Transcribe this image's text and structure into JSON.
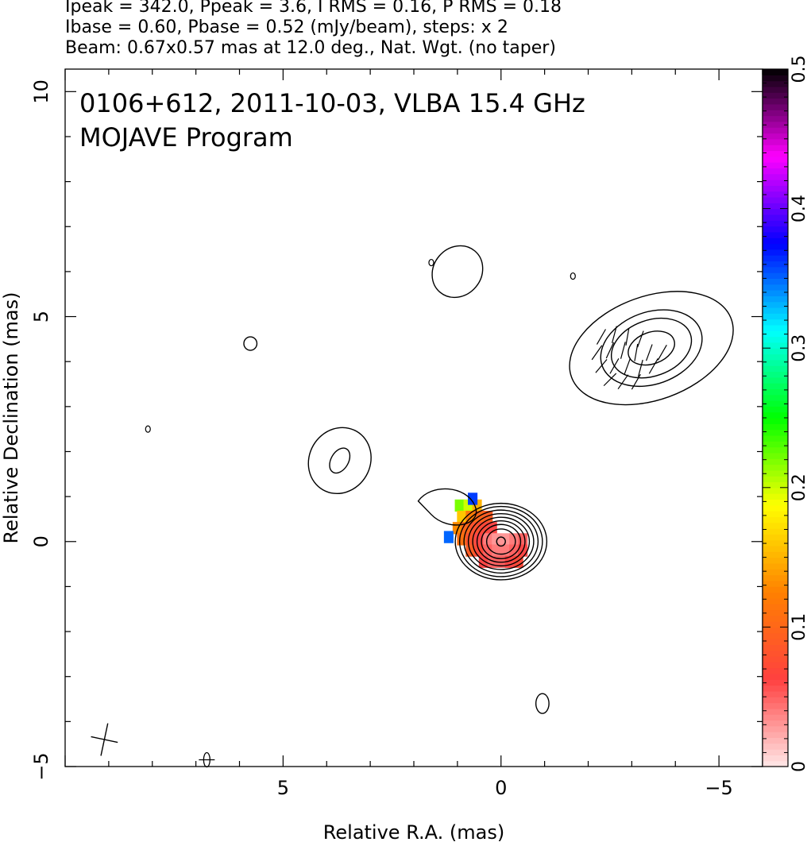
{
  "header": {
    "line1": "Ipeak = 342.0, Ppeak = 3.6, I RMS = 0.16, P RMS = 0.18",
    "line2": "Ibase = 0.60, Pbase = 0.52 (mJy/beam), steps: x 2",
    "line3": "Beam: 0.67x0.57 mas at 12.0 deg., Nat. Wgt. (no taper)"
  },
  "chart_data": {
    "type": "heatmap",
    "title": "0106+612, 2011-10-03, VLBA 15.4 GHz",
    "subtitle": "MOJAVE Program",
    "xlabel": "Relative R.A. (mas)",
    "ylabel": "Relative Declination (mas)",
    "xlim": [
      10.0,
      -6.0
    ],
    "ylim": [
      -5.0,
      10.5
    ],
    "x_ticks": [
      {
        "value": 5,
        "label": "5"
      },
      {
        "value": 0,
        "label": "0"
      },
      {
        "value": -5,
        "label": "−5"
      }
    ],
    "y_ticks": [
      {
        "value": 10,
        "label": "10"
      },
      {
        "value": 5,
        "label": "5"
      },
      {
        "value": 0,
        "label": "0"
      },
      {
        "value": -5,
        "label": "−5"
      }
    ],
    "colorbar": {
      "range": [
        0,
        0.5
      ],
      "ticks": [
        {
          "value": 0,
          "label": "0"
        },
        {
          "value": 0.1,
          "label": "0.1"
        },
        {
          "value": 0.2,
          "label": "0.2"
        },
        {
          "value": 0.3,
          "label": "0.3"
        },
        {
          "value": 0.4,
          "label": "0.4"
        },
        {
          "value": 0.5,
          "label": "0.5"
        }
      ],
      "colors": [
        "#ffe8e8",
        "#ff4040",
        "#ff8000",
        "#ffff00",
        "#00ff00",
        "#00ffff",
        "#0000ff",
        "#ff00ff",
        "#000000"
      ]
    },
    "beam": {
      "major_mas": 0.67,
      "minor_mas": 0.57,
      "pa_deg": 12.0
    },
    "contours": {
      "core": {
        "center": [
          0.0,
          0.0
        ],
        "base_radii_mas": [
          [
            1.05,
            0.85
          ],
          [
            0.95,
            0.78
          ],
          [
            0.85,
            0.7
          ],
          [
            0.75,
            0.62
          ],
          [
            0.65,
            0.54
          ],
          [
            0.55,
            0.46
          ],
          [
            0.45,
            0.38
          ],
          [
            0.33,
            0.28
          ],
          [
            0.1,
            0.1
          ]
        ]
      },
      "core_extension": [
        [
          1.9,
          0.9
        ],
        [
          1.6,
          1.3
        ],
        [
          0.8,
          1.25
        ],
        [
          0.6,
          0.8
        ],
        [
          1.2,
          0.2
        ],
        [
          1.6,
          0.6
        ]
      ],
      "components": [
        {
          "name": "upper-right",
          "center": [
            -3.45,
            4.3
          ],
          "radii_mas": [
            [
              1.95,
              1.15
            ],
            [
              1.2,
              0.8
            ],
            [
              0.95,
              0.62
            ],
            [
              0.55,
              0.35
            ]
          ],
          "rotation_deg": -20
        },
        {
          "name": "mid-left",
          "center": [
            3.7,
            1.8
          ],
          "radii_mas": [
            [
              0.7,
              0.75
            ],
            [
              0.2,
              0.3
            ]
          ],
          "rotation_deg": 30
        },
        {
          "name": "top-middle",
          "center": [
            1.0,
            6.0
          ],
          "radii_mas": [
            [
              0.55,
              0.6
            ]
          ],
          "rotation_deg": 40
        },
        {
          "name": "bottom",
          "center": [
            -0.95,
            -3.6
          ],
          "radii_mas": [
            [
              0.15,
              0.22
            ]
          ],
          "rotation_deg": 0
        },
        {
          "name": "small-left",
          "center": [
            5.75,
            4.4
          ],
          "radii_mas": [
            [
              0.15,
              0.15
            ]
          ],
          "rotation_deg": 0
        }
      ],
      "specks": [
        [
          1.6,
          6.2
        ],
        [
          8.1,
          2.5
        ],
        [
          -1.65,
          5.9
        ]
      ]
    },
    "polarization_cells": [
      {
        "x": 0.95,
        "y": 0.8,
        "v": 0.22
      },
      {
        "x": 0.75,
        "y": 0.8,
        "v": 0.2
      },
      {
        "x": 0.55,
        "y": 0.8,
        "v": 0.15
      },
      {
        "x": 0.9,
        "y": 0.55,
        "v": 0.16
      },
      {
        "x": 0.7,
        "y": 0.55,
        "v": 0.12
      },
      {
        "x": 0.5,
        "y": 0.55,
        "v": 0.1
      },
      {
        "x": 0.3,
        "y": 0.55,
        "v": 0.09
      },
      {
        "x": 1.0,
        "y": 0.3,
        "v": 0.13
      },
      {
        "x": 0.8,
        "y": 0.3,
        "v": 0.1
      },
      {
        "x": 0.6,
        "y": 0.3,
        "v": 0.08
      },
      {
        "x": 0.4,
        "y": 0.3,
        "v": 0.07
      },
      {
        "x": 0.2,
        "y": 0.3,
        "v": 0.06
      },
      {
        "x": 0.9,
        "y": 0.05,
        "v": 0.11
      },
      {
        "x": 0.7,
        "y": 0.05,
        "v": 0.08
      },
      {
        "x": 0.5,
        "y": 0.05,
        "v": 0.06
      },
      {
        "x": 0.3,
        "y": 0.05,
        "v": 0.04
      },
      {
        "x": 0.1,
        "y": 0.05,
        "v": 0.03
      },
      {
        "x": -0.1,
        "y": 0.05,
        "v": 0.03
      },
      {
        "x": -0.3,
        "y": 0.05,
        "v": 0.04
      },
      {
        "x": -0.5,
        "y": 0.05,
        "v": 0.05
      },
      {
        "x": 0.7,
        "y": -0.2,
        "v": 0.09
      },
      {
        "x": 0.5,
        "y": -0.2,
        "v": 0.07
      },
      {
        "x": 0.3,
        "y": -0.2,
        "v": 0.05
      },
      {
        "x": 0.1,
        "y": -0.2,
        "v": 0.04
      },
      {
        "x": -0.1,
        "y": -0.2,
        "v": 0.04
      },
      {
        "x": -0.3,
        "y": -0.2,
        "v": 0.05
      },
      {
        "x": -0.5,
        "y": -0.2,
        "v": 0.06
      },
      {
        "x": 0.4,
        "y": -0.45,
        "v": 0.06
      },
      {
        "x": 0.2,
        "y": -0.45,
        "v": 0.05
      },
      {
        "x": 0.0,
        "y": -0.45,
        "v": 0.05
      },
      {
        "x": -0.2,
        "y": -0.45,
        "v": 0.06
      },
      {
        "x": -0.4,
        "y": -0.45,
        "v": 0.07
      },
      {
        "x": 1.2,
        "y": 0.1,
        "v": 0.35
      },
      {
        "x": 0.65,
        "y": 0.95,
        "v": 0.36
      }
    ],
    "evpa_ticks": [
      [
        -2.3,
        4.55,
        60
      ],
      [
        -2.6,
        4.6,
        75
      ],
      [
        -2.9,
        4.55,
        80
      ],
      [
        -3.2,
        4.5,
        70
      ],
      [
        -2.2,
        4.2,
        55
      ],
      [
        -2.5,
        4.25,
        65
      ],
      [
        -2.8,
        4.25,
        75
      ],
      [
        -3.1,
        4.2,
        80
      ],
      [
        -3.4,
        4.2,
        70
      ],
      [
        -3.7,
        4.2,
        60
      ],
      [
        -2.3,
        3.9,
        50
      ],
      [
        -2.6,
        3.9,
        60
      ],
      [
        -2.9,
        3.9,
        70
      ],
      [
        -3.2,
        3.85,
        75
      ],
      [
        -3.5,
        3.9,
        60
      ],
      [
        -2.5,
        3.6,
        45
      ],
      [
        -2.8,
        3.55,
        55
      ],
      [
        -3.1,
        3.55,
        60
      ]
    ]
  }
}
